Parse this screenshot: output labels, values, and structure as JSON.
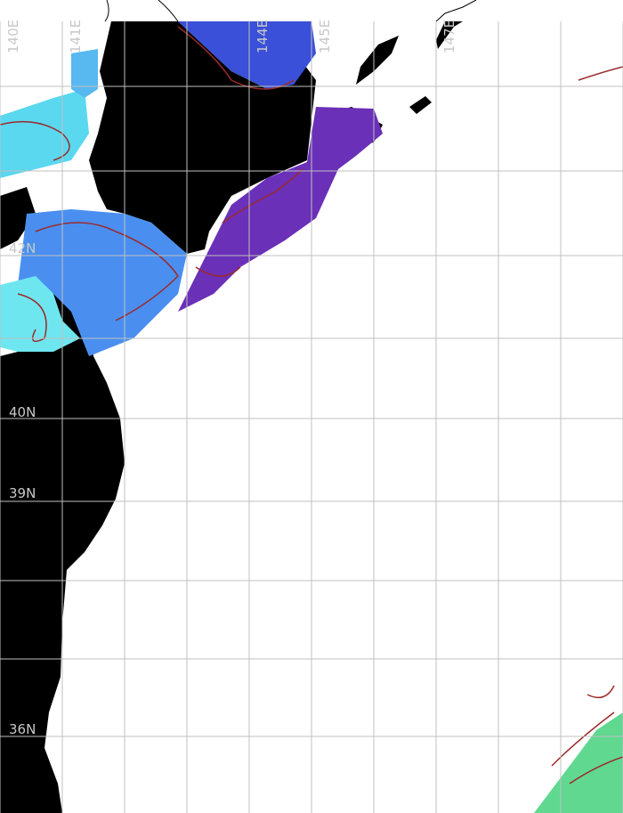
{
  "map": {
    "lon_labels": [
      "140E",
      "141E",
      "144E",
      "145E",
      "147E"
    ],
    "lat_labels": [
      "42N",
      "40N",
      "39N",
      "36N"
    ],
    "colors": {
      "land": "#000000",
      "ocean_nodata": "#ffffff",
      "grid": "#c0c0c0",
      "contour": "#9b2a2a",
      "cold_cyan": "#5ad8f0",
      "mid_blue": "#4a8ff0",
      "deep_blue": "#3a50d8",
      "purple": "#6a30b8"
    }
  }
}
